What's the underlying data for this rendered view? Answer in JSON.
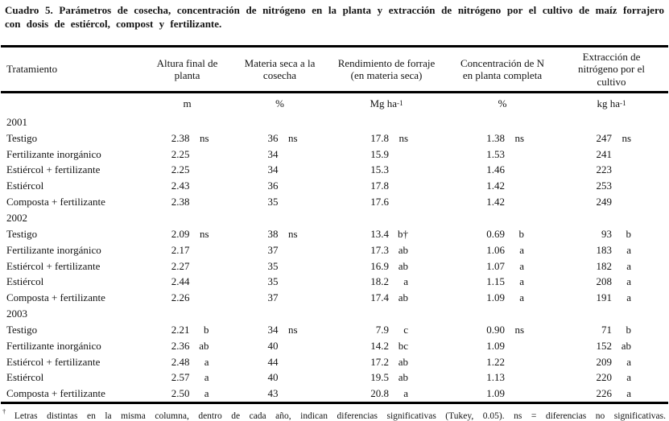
{
  "title": {
    "line1": "Cuadro 5. Parámetros de cosecha, concentración de nitrógeno en la planta y extracción de nitrógeno por el cultivo de maíz forrajero",
    "line2": "con dosis de estiércol, compost y fertilizante."
  },
  "table": {
    "columns": [
      {
        "header_lines": [
          "Tratamiento"
        ],
        "unit": "",
        "unit_sup": ""
      },
      {
        "header_lines": [
          "Altura final de",
          "planta"
        ],
        "unit": "m",
        "unit_sup": ""
      },
      {
        "header_lines": [
          "Materia seca a la",
          "cosecha"
        ],
        "unit": "%",
        "unit_sup": ""
      },
      {
        "header_lines": [
          "Rendimiento de forraje",
          "(en materia seca)"
        ],
        "unit": "Mg ha",
        "unit_sup": "-1"
      },
      {
        "header_lines": [
          "Concentración de N",
          "en planta completa"
        ],
        "unit": "%",
        "unit_sup": ""
      },
      {
        "header_lines": [
          "Extracción de",
          "nitrógeno  por el",
          "cultivo"
        ],
        "unit": "kg ha",
        "unit_sup": "-1"
      }
    ],
    "groups": [
      {
        "year": "2001",
        "rows": [
          {
            "treatment": "Testigo",
            "values": [
              [
                "2.38",
                "ns"
              ],
              [
                "36",
                "ns"
              ],
              [
                "17.8",
                "ns"
              ],
              [
                "1.38",
                "ns"
              ],
              [
                "247",
                "ns"
              ]
            ]
          },
          {
            "treatment": "Fertilizante inorgánico",
            "values": [
              [
                "2.25",
                ""
              ],
              [
                "34",
                ""
              ],
              [
                "15.9",
                ""
              ],
              [
                "1.53",
                ""
              ],
              [
                "241",
                ""
              ]
            ]
          },
          {
            "treatment": "Estiércol + fertilizante",
            "values": [
              [
                "2.25",
                ""
              ],
              [
                "34",
                ""
              ],
              [
                "15.3",
                ""
              ],
              [
                "1.46",
                ""
              ],
              [
                "223",
                ""
              ]
            ]
          },
          {
            "treatment": "Estiércol",
            "values": [
              [
                "2.43",
                ""
              ],
              [
                "36",
                ""
              ],
              [
                "17.8",
                ""
              ],
              [
                "1.42",
                ""
              ],
              [
                "253",
                ""
              ]
            ]
          },
          {
            "treatment": "Composta + fertilizante",
            "values": [
              [
                "2.38",
                ""
              ],
              [
                "35",
                ""
              ],
              [
                "17.6",
                ""
              ],
              [
                "1.42",
                ""
              ],
              [
                "249",
                ""
              ]
            ]
          }
        ]
      },
      {
        "year": "2002",
        "rows": [
          {
            "treatment": "Testigo",
            "values": [
              [
                "2.09",
                "ns"
              ],
              [
                "38",
                "ns"
              ],
              [
                "13.4",
                "b†"
              ],
              [
                "0.69",
                "b"
              ],
              [
                "93",
                "b"
              ]
            ]
          },
          {
            "treatment": "Fertilizante inorgánico",
            "values": [
              [
                "2.17",
                ""
              ],
              [
                "37",
                ""
              ],
              [
                "17.3",
                "ab"
              ],
              [
                "1.06",
                "a"
              ],
              [
                "183",
                "a"
              ]
            ]
          },
          {
            "treatment": "Estiércol + fertilizante",
            "values": [
              [
                "2.27",
                ""
              ],
              [
                "35",
                ""
              ],
              [
                "16.9",
                "ab"
              ],
              [
                "1.07",
                "a"
              ],
              [
                "182",
                "a"
              ]
            ]
          },
          {
            "treatment": "Estiércol",
            "values": [
              [
                "2.44",
                ""
              ],
              [
                "35",
                ""
              ],
              [
                "18.2",
                "a"
              ],
              [
                "1.15",
                "a"
              ],
              [
                "208",
                "a"
              ]
            ]
          },
          {
            "treatment": "Composta + fertilizante",
            "values": [
              [
                "2.26",
                ""
              ],
              [
                "37",
                ""
              ],
              [
                "17.4",
                "ab"
              ],
              [
                "1.09",
                "a"
              ],
              [
                "191",
                "a"
              ]
            ]
          }
        ]
      },
      {
        "year": "2003",
        "rows": [
          {
            "treatment": "Testigo",
            "values": [
              [
                "2.21",
                "b"
              ],
              [
                "34",
                "ns"
              ],
              [
                "7.9",
                "c"
              ],
              [
                "0.90",
                "ns"
              ],
              [
                "71",
                "b"
              ]
            ]
          },
          {
            "treatment": "Fertilizante inorgánico",
            "values": [
              [
                "2.36",
                "ab"
              ],
              [
                "40",
                ""
              ],
              [
                "14.2",
                "bc"
              ],
              [
                "1.09",
                ""
              ],
              [
                "152",
                "ab"
              ]
            ]
          },
          {
            "treatment": "Estiércol + fertilizante",
            "values": [
              [
                "2.48",
                "a"
              ],
              [
                "44",
                ""
              ],
              [
                "17.2",
                "ab"
              ],
              [
                "1.22",
                ""
              ],
              [
                "209",
                "a"
              ]
            ]
          },
          {
            "treatment": "Estiércol",
            "values": [
              [
                "2.57",
                "a"
              ],
              [
                "40",
                ""
              ],
              [
                "19.5",
                "ab"
              ],
              [
                "1.13",
                ""
              ],
              [
                "220",
                "a"
              ]
            ]
          },
          {
            "treatment": "Composta + fertilizante",
            "values": [
              [
                "2.50",
                "a"
              ],
              [
                "43",
                ""
              ],
              [
                "20.8",
                "a"
              ],
              [
                "1.09",
                ""
              ],
              [
                "226",
                "a"
              ]
            ]
          }
        ]
      }
    ]
  },
  "footnote": {
    "dagger": "†",
    "text": "Letras distintas en la misma columna, dentro de cada año, indican diferencias significativas (Tukey, 0.05). ns = diferencias no significativas."
  }
}
